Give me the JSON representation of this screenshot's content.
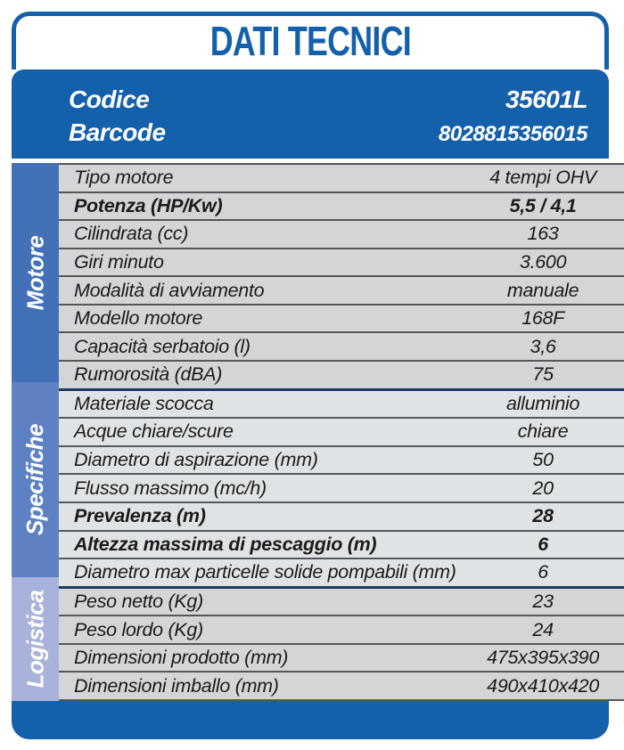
{
  "title": "DATI TECNICI",
  "product": {
    "codice_label": "Codice",
    "codice_value": "35601L",
    "barcode_label": "Barcode",
    "barcode_value": "8028815356015"
  },
  "colors": {
    "brand_blue": "#1560ab",
    "separator": "#54585c",
    "section_separator": "#1a3a64"
  },
  "sections": [
    {
      "name": "Motore",
      "band_color": "#4371b8",
      "row_bg": "#d3d5d7",
      "rows": [
        {
          "label": "Tipo motore",
          "value": "4 tempi OHV",
          "bold": false
        },
        {
          "label": "Potenza (HP/Kw)",
          "value": "5,5 / 4,1",
          "bold": true
        },
        {
          "label": "Cilindrata (cc)",
          "value": "163",
          "bold": false
        },
        {
          "label": "Giri minuto",
          "value": "3.600",
          "bold": false
        },
        {
          "label": "Modalità di avviamento",
          "value": "manuale",
          "bold": false
        },
        {
          "label": "Modello motore",
          "value": "168F",
          "bold": false
        },
        {
          "label": "Capacità serbatoio (l)",
          "value": "3,6",
          "bold": false
        },
        {
          "label": "Rumorosità (dBA)",
          "value": "75",
          "bold": false
        }
      ]
    },
    {
      "name": "Specifiche",
      "band_color": "#5e81c4",
      "row_bg": "#dfe3e5",
      "rows": [
        {
          "label": "Materiale scocca",
          "value": "alluminio",
          "bold": false
        },
        {
          "label": "Acque chiare/scure",
          "value": "chiare",
          "bold": false
        },
        {
          "label": "Diametro di aspirazione (mm)",
          "value": "50",
          "bold": false
        },
        {
          "label": "Flusso massimo (mc/h)",
          "value": "20",
          "bold": false
        },
        {
          "label": "Prevalenza (m)",
          "value": "28",
          "bold": true
        },
        {
          "label": "Altezza massima di pescaggio (m)",
          "value": "6",
          "bold": true
        },
        {
          "label": "Diametro max particelle solide pompabili (mm)",
          "value": "6",
          "bold": false
        }
      ]
    },
    {
      "name": "Logistica",
      "band_color": "#a9b2db",
      "row_bg": "#d3d5d7",
      "rows": [
        {
          "label": "Peso netto (Kg)",
          "value": "23",
          "bold": false
        },
        {
          "label": "Peso lordo (Kg)",
          "value": "24",
          "bold": false
        },
        {
          "label": "Dimensioni prodotto (mm)",
          "value": "475x395x390",
          "bold": false
        },
        {
          "label": "Dimensioni imballo (mm)",
          "value": "490x410x420",
          "bold": false
        }
      ]
    }
  ]
}
